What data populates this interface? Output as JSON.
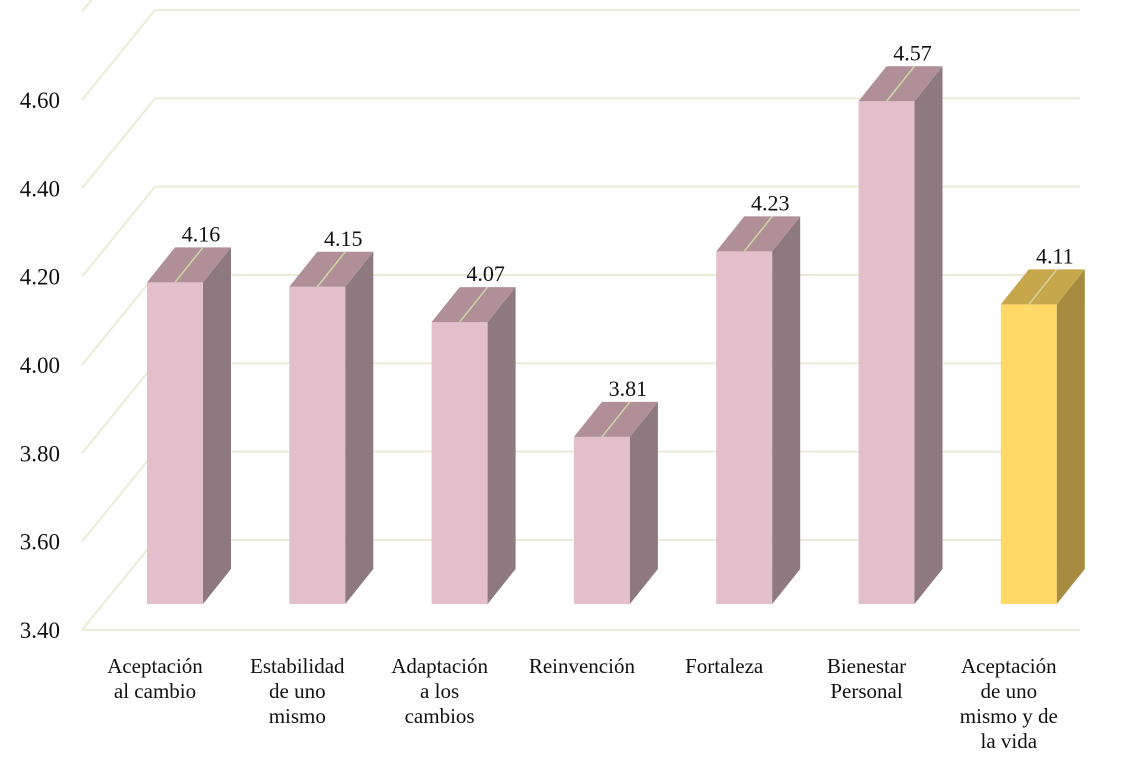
{
  "chart_data": {
    "type": "bar",
    "style": "3d-column",
    "title": "",
    "xlabel": "",
    "ylabel": "",
    "ylim": [
      3.4,
      4.6
    ],
    "yticks": [
      "3.40",
      "3.60",
      "3.80",
      "4.00",
      "4.20",
      "4.40",
      "4.60"
    ],
    "grid": true,
    "categories": [
      [
        "Aceptación",
        "al cambio"
      ],
      [
        "Estabilidad",
        "de uno",
        "mismo"
      ],
      [
        "Adaptación",
        "a los",
        "cambios"
      ],
      [
        "Reinvención"
      ],
      [
        "Fortaleza"
      ],
      [
        "Bienestar",
        "Personal"
      ],
      [
        "Aceptación",
        "de uno",
        "mismo y de",
        "la vida"
      ]
    ],
    "values": [
      4.16,
      4.15,
      4.07,
      3.81,
      4.23,
      4.57,
      4.11
    ],
    "value_labels": [
      "4.16",
      "4.15",
      "4.07",
      "3.81",
      "4.23",
      "4.57",
      "4.11"
    ],
    "highlight_index": 6,
    "colors": {
      "bar_front": "#e2bfca",
      "bar_top": "#b08f98",
      "bar_side": "#8f7980",
      "highlight_front": "#ffd966",
      "highlight_top": "#c6a74c",
      "highlight_side": "#a68b40",
      "grid": "#ebebd8"
    }
  }
}
